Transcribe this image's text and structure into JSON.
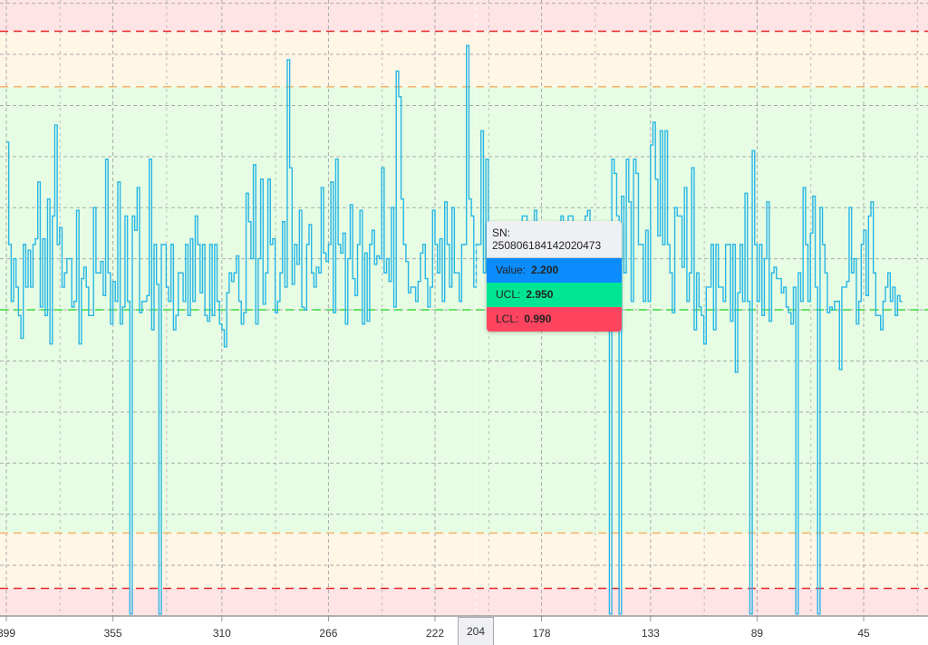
{
  "chart_data": {
    "type": "line",
    "step": true,
    "x_start_index": 399,
    "x_axis_reversed": true,
    "x_ticks": [
      399,
      355,
      310,
      266,
      222,
      178,
      133,
      89,
      45
    ],
    "ylim": [
      0.893,
      3.06
    ],
    "grid": true,
    "control_limits": {
      "UCL": 2.95,
      "LCL": 0.99,
      "center": 1.97,
      "upper_warning": 2.755,
      "lower_warning": 1.185
    },
    "values": [
      2.56,
      2.2,
      2.0,
      2.15,
      2.05,
      1.95,
      1.87,
      2.2,
      2.05,
      2.18,
      2.05,
      2.2,
      2.22,
      2.42,
      1.98,
      2.22,
      1.95,
      2.36,
      1.85,
      2.3,
      2.62,
      2.2,
      2.26,
      2.05,
      2.1,
      2.15,
      2.15,
      1.98,
      2.0,
      2.32,
      1.85,
      2.08,
      2.12,
      2.05,
      1.95,
      1.95,
      2.33,
      2.1,
      2.1,
      2.14,
      2.02,
      2.5,
      2.1,
      1.92,
      2.07,
      2.0,
      2.42,
      1.92,
      1.98,
      2.3,
      2.0,
      0.9,
      2.3,
      2.25,
      2.4,
      1.96,
      2.0,
      2.0,
      2.02,
      2.5,
      1.9,
      2.2,
      2.06,
      0.9,
      2.2,
      2.2,
      2.05,
      2.0,
      2.2,
      1.9,
      1.95,
      2.1,
      2.1,
      2.0,
      2.2,
      1.95,
      2.22,
      2.0,
      2.3,
      2.2,
      2.03,
      2.2,
      1.95,
      1.93,
      2.2,
      1.95,
      2.2,
      2.0,
      1.92,
      1.9,
      1.84,
      2.03,
      2.1,
      2.07,
      2.1,
      2.16,
      2.0,
      1.92,
      1.96,
      2.38,
      2.28,
      2.15,
      2.48,
      1.92,
      2.15,
      2.43,
      1.99,
      2.1,
      2.43,
      2.2,
      2.22,
      1.96,
      2.0,
      2.1,
      2.28,
      2.05,
      2.85,
      2.47,
      2.06,
      2.2,
      2.13,
      2.32,
      1.98,
      1.97,
      2.2,
      2.27,
      2.1,
      2.05,
      2.12,
      2.1,
      2.4,
      2.17,
      2.14,
      2.2,
      2.42,
      1.96,
      2.5,
      2.2,
      2.17,
      2.24,
      1.92,
      2.15,
      2.34,
      2.08,
      2.02,
      2.2,
      2.32,
      1.92,
      2.17,
      1.93,
      2.2,
      2.25,
      2.13,
      2.16,
      2.15,
      2.47,
      2.1,
      2.15,
      2.07,
      2.33,
      1.98,
      2.81,
      2.72,
      2.36,
      2.2,
      2.14,
      2.03,
      2.05,
      2.05,
      2.0,
      2.07,
      2.17,
      2.2,
      2.08,
      1.98,
      2.05,
      2.32,
      2.2,
      2.1,
      2.22,
      2.0,
      2.35,
      2.2,
      2.05,
      2.33,
      2.1,
      2.1,
      2.0,
      2.2,
      2.2,
      2.9,
      2.36,
      2.3,
      2.05,
      2.2,
      2.2,
      2.6,
      2.1,
      2.5,
      2.0,
      2.2,
      2.2,
      2.1,
      2.15,
      2.05,
      2.15,
      2.2,
      2.05,
      2.25,
      2.15,
      2.0,
      2.2,
      2.2,
      2.3,
      2.3,
      2.1,
      2.05,
      2.2,
      2.32,
      2.1,
      2.0,
      2.22,
      2.25,
      2.08,
      2.25,
      2.25,
      2.05,
      2.15,
      2.0,
      2.3,
      2.1,
      2.0,
      2.3,
      2.3,
      2.1,
      2.1,
      2.2,
      1.95,
      2.1,
      2.3,
      2.32,
      2.25,
      2.08,
      2.2,
      2.05,
      2.25,
      2.0,
      2.1,
      2.2,
      0.9,
      2.5,
      2.45,
      2.3,
      0.9,
      2.37,
      2.1,
      2.5,
      2.35,
      2.0,
      2.5,
      2.45,
      2.2,
      2.2,
      2.0,
      2.25,
      2.0,
      2.55,
      2.63,
      2.43,
      2.23,
      2.6,
      2.2,
      2.6,
      2.2,
      2.1,
      1.96,
      2.33,
      2.3,
      2.3,
      2.12,
      2.4,
      2.0,
      2.1,
      2.47,
      1.9,
      2.1,
      1.98,
      1.95,
      1.85,
      2.05,
      2.05,
      2.2,
      1.9,
      2.2,
      2.05,
      2.05,
      2.0,
      2.2,
      2.2,
      1.93,
      2.2,
      1.75,
      2.03,
      2.2,
      2.0,
      2.38,
      2.0,
      0.9,
      2.53,
      2.2,
      2.0,
      2.2,
      1.95,
      2.15,
      2.35,
      1.93,
      2.1,
      2.12,
      2.08,
      2.08,
      2.03,
      2.05,
      1.98,
      1.96,
      1.92,
      2.05,
      0.9,
      2.1,
      2.0,
      2.4,
      2.2,
      2.0,
      2.24,
      2.37,
      2.05,
      0.9,
      2.33,
      2.2,
      2.1,
      1.96,
      1.98,
      1.97,
      2.0,
      2.0,
      1.76,
      2.05,
      2.05,
      2.07,
      2.33,
      2.1,
      2.15,
      1.92,
      2.0,
      2.2,
      2.25,
      2.02,
      2.3,
      2.35,
      2.1,
      1.95,
      1.95,
      1.9,
      2.0,
      2.05,
      2.1,
      2.0,
      2.05,
      1.95,
      2.02,
      2.0
    ],
    "colors": {
      "series": "#29b6e6",
      "ucl_lcl": "#e8272b",
      "warning": "#f7b36a",
      "center": "#3ddc3d",
      "band_out": "#ffe4e6",
      "band_warn": "#fff6e6",
      "band_ok": "#e6fde3"
    }
  },
  "tooltip": {
    "sn_label": "SN: 250806184142020473",
    "value_label": "Value:",
    "value": "2.200",
    "value_color": "#0a8cff",
    "ucl_label": "UCL:",
    "ucl": "2.950",
    "ucl_color": "#00e594",
    "lcl_label": "LCL:",
    "lcl": "0.990",
    "lcl_color": "#ff4460"
  },
  "axis_pointer": {
    "label": "204"
  }
}
